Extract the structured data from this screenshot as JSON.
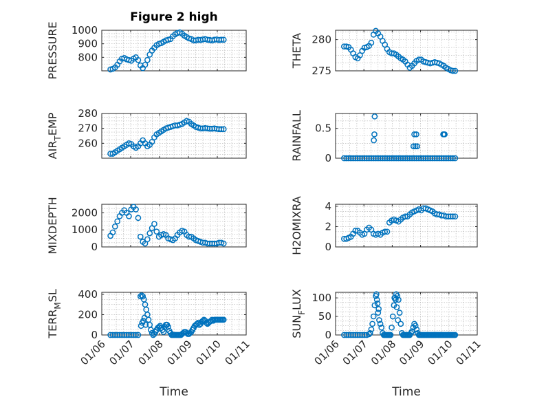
{
  "figure": {
    "title": "Figure 2 high",
    "marker_color": "#0072BD",
    "x_tick_labels": [
      "01/06",
      "01/07",
      "01/08",
      "01/09",
      "01/10",
      "01/11"
    ],
    "xlabel": "Time"
  },
  "chart_data": [
    {
      "type": "scatter",
      "title": "Figure 2 high",
      "ylabel": "PRESSURE",
      "xlim": [
        0,
        5
      ],
      "ylim": [
        700,
        1000
      ],
      "ytick_labels": [
        "800",
        "900",
        "1000"
      ],
      "grid": true,
      "x": [
        0.3,
        0.38,
        0.46,
        0.54,
        0.62,
        0.7,
        0.78,
        0.86,
        0.94,
        1.02,
        1.1,
        1.18,
        1.26,
        1.34,
        1.42,
        1.5,
        1.58,
        1.66,
        1.74,
        1.82,
        1.9,
        1.98,
        2.06,
        2.14,
        2.22,
        2.3,
        2.38,
        2.46,
        2.54,
        2.62,
        2.7,
        2.78,
        2.86,
        2.94,
        3.02,
        3.1,
        3.18,
        3.26,
        3.34,
        3.42,
        3.5,
        3.58,
        3.66,
        3.74,
        3.82,
        3.9,
        3.98,
        4.06,
        4.14,
        4.22
      ],
      "y": [
        710,
        715,
        725,
        745,
        770,
        790,
        795,
        785,
        780,
        775,
        790,
        800,
        780,
        740,
        720,
        745,
        780,
        820,
        850,
        870,
        890,
        900,
        905,
        915,
        925,
        930,
        935,
        955,
        970,
        980,
        985,
        975,
        960,
        950,
        940,
        935,
        925,
        925,
        930,
        928,
        932,
        935,
        930,
        928,
        925,
        930,
        932,
        928,
        930,
        930
      ]
    },
    {
      "type": "scatter",
      "ylabel": "THETA",
      "xlim": [
        0,
        5
      ],
      "ylim": [
        275,
        281.5
      ],
      "ytick_labels": [
        "275",
        "280"
      ],
      "grid": true,
      "x": [
        0.3,
        0.38,
        0.46,
        0.54,
        0.62,
        0.7,
        0.78,
        0.86,
        0.94,
        1.02,
        1.1,
        1.18,
        1.26,
        1.34,
        1.42,
        1.5,
        1.58,
        1.66,
        1.74,
        1.82,
        1.9,
        1.98,
        2.06,
        2.14,
        2.22,
        2.3,
        2.38,
        2.46,
        2.54,
        2.62,
        2.7,
        2.78,
        2.86,
        2.94,
        3.02,
        3.1,
        3.18,
        3.26,
        3.34,
        3.42,
        3.5,
        3.58,
        3.66,
        3.74,
        3.82,
        3.9,
        3.98,
        4.06,
        4.14,
        4.22
      ],
      "y": [
        278.9,
        278.9,
        278.8,
        278.4,
        277.8,
        277.2,
        277.0,
        277.5,
        278.2,
        278.7,
        278.8,
        279.0,
        279.5,
        280.8,
        281.4,
        281.0,
        280.5,
        279.8,
        279.2,
        278.5,
        278.0,
        277.8,
        277.8,
        277.6,
        277.3,
        277.0,
        276.8,
        276.5,
        276.0,
        275.5,
        275.8,
        276.2,
        276.6,
        276.8,
        276.8,
        276.5,
        276.4,
        276.3,
        276.2,
        276.3,
        276.4,
        276.3,
        276.2,
        276.0,
        275.8,
        275.5,
        275.3,
        275.1,
        275.0,
        275.0
      ]
    },
    {
      "type": "scatter",
      "ylabel": "AIR",
      "ylabel_sub": "T",
      "ylabel_rest": "EMP",
      "xlim": [
        0,
        5
      ],
      "ylim": [
        250,
        280
      ],
      "ytick_labels": [
        "260",
        "270",
        "280"
      ],
      "grid": true,
      "x": [
        0.3,
        0.38,
        0.46,
        0.54,
        0.62,
        0.7,
        0.78,
        0.86,
        0.94,
        1.02,
        1.1,
        1.18,
        1.26,
        1.34,
        1.42,
        1.5,
        1.58,
        1.66,
        1.74,
        1.82,
        1.9,
        1.98,
        2.06,
        2.14,
        2.22,
        2.3,
        2.38,
        2.46,
        2.54,
        2.62,
        2.7,
        2.78,
        2.86,
        2.94,
        3.02,
        3.1,
        3.18,
        3.26,
        3.34,
        3.42,
        3.5,
        3.58,
        3.66,
        3.74,
        3.82,
        3.9,
        3.98,
        4.06,
        4.14,
        4.22
      ],
      "y": [
        253,
        253,
        254,
        255,
        256,
        257,
        258,
        259,
        260,
        259.5,
        258,
        257,
        258,
        260,
        262,
        260,
        258,
        259,
        261,
        264,
        266,
        267,
        268,
        269,
        270,
        270.5,
        271,
        271.5,
        272,
        272,
        272.5,
        273,
        274,
        275,
        274.5,
        273,
        272,
        271,
        270.5,
        270,
        270,
        270.2,
        270,
        269.8,
        269.8,
        270,
        269.7,
        269.5,
        269.5,
        269.5
      ]
    },
    {
      "type": "scatter",
      "ylabel": "RAINFALL",
      "xlim": [
        0,
        5
      ],
      "ylim": [
        0,
        0.75
      ],
      "ytick_labels": [
        "0",
        "0.5"
      ],
      "grid": true,
      "x": [
        0.3,
        0.38,
        0.46,
        0.54,
        0.62,
        0.7,
        0.78,
        0.86,
        0.94,
        1.02,
        1.1,
        1.18,
        1.26,
        1.34,
        1.42,
        1.5,
        1.58,
        1.66,
        1.74,
        1.82,
        1.9,
        1.98,
        2.06,
        2.14,
        2.22,
        2.3,
        2.38,
        2.46,
        2.54,
        2.62,
        2.7,
        2.78,
        2.86,
        2.94,
        3.02,
        3.1,
        3.18,
        3.26,
        3.34,
        3.42,
        3.5,
        3.58,
        3.66,
        3.74,
        3.82,
        3.9,
        3.98,
        4.06,
        4.14,
        4.22,
        1.35,
        1.37,
        1.38,
        2.75,
        2.78,
        2.82,
        2.85,
        2.88,
        3.8,
        3.82,
        3.85
      ],
      "y": [
        0,
        0,
        0,
        0,
        0,
        0,
        0,
        0,
        0,
        0,
        0,
        0,
        0,
        0,
        0,
        0,
        0,
        0,
        0,
        0,
        0,
        0,
        0,
        0,
        0,
        0,
        0,
        0,
        0,
        0,
        0,
        0,
        0,
        0,
        0,
        0,
        0,
        0,
        0,
        0,
        0,
        0,
        0,
        0,
        0,
        0,
        0,
        0,
        0,
        0,
        0.3,
        0.4,
        0.7,
        0.2,
        0.4,
        0.2,
        0.4,
        0.2,
        0.4,
        0.4,
        0.4
      ]
    },
    {
      "type": "scatter",
      "ylabel": "MIXDEPTH",
      "xlim": [
        0,
        5
      ],
      "ylim": [
        0,
        2500
      ],
      "ytick_labels": [
        "0",
        "1000",
        "2000"
      ],
      "grid": true,
      "x": [
        0.3,
        0.38,
        0.46,
        0.54,
        0.62,
        0.7,
        0.78,
        0.86,
        0.94,
        1.02,
        1.1,
        1.18,
        1.26,
        1.34,
        1.42,
        1.5,
        1.58,
        1.66,
        1.74,
        1.82,
        1.9,
        1.98,
        2.06,
        2.14,
        2.22,
        2.3,
        2.38,
        2.46,
        2.54,
        2.62,
        2.7,
        2.78,
        2.86,
        2.94,
        3.02,
        3.1,
        3.18,
        3.26,
        3.34,
        3.42,
        3.5,
        3.58,
        3.66,
        3.74,
        3.82,
        3.9,
        3.98,
        4.06,
        4.14,
        4.22
      ],
      "y": [
        650,
        850,
        1200,
        1500,
        1800,
        2000,
        2150,
        2000,
        1800,
        2200,
        2350,
        2200,
        1700,
        600,
        300,
        200,
        450,
        800,
        1100,
        1350,
        900,
        600,
        700,
        750,
        700,
        500,
        450,
        400,
        500,
        700,
        850,
        950,
        900,
        700,
        600,
        600,
        500,
        400,
        350,
        300,
        250,
        250,
        200,
        200,
        200,
        200,
        200,
        250,
        250,
        200
      ]
    },
    {
      "type": "scatter",
      "ylabel": "H2OMIXRA",
      "xlim": [
        0,
        5
      ],
      "ylim": [
        0,
        4.2
      ],
      "ytick_labels": [
        "0",
        "2",
        "4"
      ],
      "grid": true,
      "x": [
        0.3,
        0.38,
        0.46,
        0.54,
        0.62,
        0.7,
        0.78,
        0.86,
        0.94,
        1.02,
        1.1,
        1.18,
        1.26,
        1.34,
        1.42,
        1.5,
        1.58,
        1.66,
        1.74,
        1.82,
        1.9,
        1.98,
        2.06,
        2.14,
        2.22,
        2.3,
        2.38,
        2.46,
        2.54,
        2.62,
        2.7,
        2.78,
        2.86,
        2.94,
        3.02,
        3.1,
        3.18,
        3.26,
        3.34,
        3.42,
        3.5,
        3.58,
        3.66,
        3.74,
        3.82,
        3.9,
        3.98,
        4.06,
        4.14,
        4.22
      ],
      "y": [
        0.8,
        0.8,
        0.9,
        1.0,
        1.3,
        1.6,
        1.6,
        1.4,
        1.2,
        1.3,
        1.7,
        1.9,
        1.7,
        1.3,
        1.2,
        1.3,
        1.2,
        1.4,
        1.5,
        1.5,
        2.4,
        2.6,
        2.7,
        2.6,
        2.5,
        2.7,
        2.9,
        3.0,
        3.0,
        3.2,
        3.4,
        3.5,
        3.6,
        3.7,
        3.6,
        3.8,
        3.8,
        3.7,
        3.6,
        3.5,
        3.3,
        3.2,
        3.2,
        3.1,
        3.1,
        3.0,
        3.0,
        3.0,
        3.0,
        3.0
      ]
    },
    {
      "type": "scatter",
      "ylabel": "TERR",
      "ylabel_sub": "M",
      "ylabel_rest": "SL",
      "xlim": [
        0,
        5
      ],
      "ylim": [
        0,
        420
      ],
      "ytick_labels": [
        "0",
        "200",
        "400"
      ],
      "grid": true,
      "x": [
        0.3,
        0.38,
        0.46,
        0.54,
        0.62,
        0.7,
        0.78,
        0.86,
        0.94,
        1.02,
        1.1,
        1.18,
        1.26,
        1.34,
        1.38,
        1.42,
        1.46,
        1.5,
        1.54,
        1.58,
        1.62,
        1.66,
        1.7,
        1.74,
        1.78,
        1.82,
        1.86,
        1.9,
        1.94,
        1.98,
        2.02,
        2.06,
        2.1,
        2.14,
        2.18,
        2.22,
        2.26,
        2.3,
        2.34,
        2.38,
        2.42,
        2.46,
        2.5,
        2.54,
        2.58,
        2.62,
        2.66,
        2.7,
        2.74,
        2.78,
        2.82,
        2.86,
        2.9,
        2.94,
        2.98,
        3.02,
        3.06,
        3.1,
        3.14,
        3.18,
        3.22,
        3.26,
        3.3,
        3.34,
        3.38,
        3.42,
        3.46,
        3.5,
        3.54,
        3.58,
        3.62,
        3.66,
        3.7,
        3.74,
        3.78,
        3.82,
        3.86,
        3.9,
        3.94,
        3.98,
        4.02,
        4.06,
        4.1,
        4.14,
        4.18,
        4.22,
        1.36,
        1.4,
        1.48,
        1.52,
        1.44
      ],
      "y": [
        0,
        0,
        0,
        0,
        0,
        0,
        0,
        0,
        0,
        0,
        0,
        0,
        0,
        380,
        390,
        380,
        350,
        300,
        250,
        200,
        150,
        100,
        50,
        20,
        0,
        10,
        30,
        50,
        70,
        80,
        90,
        70,
        50,
        30,
        80,
        100,
        100,
        80,
        40,
        20,
        0,
        0,
        0,
        0,
        0,
        0,
        0,
        0,
        0,
        10,
        20,
        30,
        30,
        20,
        10,
        10,
        20,
        30,
        50,
        70,
        90,
        100,
        110,
        120,
        100,
        110,
        130,
        140,
        150,
        140,
        120,
        110,
        120,
        130,
        140,
        150,
        140,
        150,
        150,
        150,
        150,
        150,
        150,
        150,
        150,
        150,
        90,
        120,
        170,
        100,
        140
      ]
    },
    {
      "type": "scatter",
      "ylabel": "SUN",
      "ylabel_sub": "F",
      "ylabel_rest": "LUX",
      "xlim": [
        0,
        5
      ],
      "ylim": [
        0,
        115
      ],
      "ytick_labels": [
        "0",
        "50",
        "100"
      ],
      "grid": true,
      "x": [
        0.3,
        0.38,
        0.46,
        0.54,
        0.62,
        0.7,
        0.78,
        0.86,
        0.94,
        1.02,
        1.1,
        1.18,
        1.22,
        1.26,
        1.3,
        1.34,
        1.38,
        1.42,
        1.46,
        1.5,
        1.54,
        1.58,
        1.62,
        1.66,
        1.7,
        1.74,
        1.78,
        1.82,
        1.86,
        1.9,
        1.94,
        1.98,
        2.02,
        2.06,
        2.1,
        2.14,
        2.18,
        2.22,
        2.26,
        2.3,
        2.34,
        2.38,
        2.42,
        2.46,
        2.5,
        2.54,
        2.58,
        2.62,
        2.66,
        2.7,
        2.74,
        2.78,
        2.82,
        2.86,
        2.9,
        2.94,
        2.98,
        3.02,
        3.06,
        3.1,
        3.14,
        3.18,
        3.22,
        3.26,
        3.3,
        3.34,
        3.38,
        3.42,
        3.46,
        3.5,
        3.54,
        3.58,
        3.62,
        3.66,
        3.7,
        3.74,
        3.78,
        3.82,
        3.86,
        3.9,
        3.94,
        3.98,
        4.02,
        4.06,
        4.1,
        4.14,
        4.18,
        4.22,
        1.44,
        1.48,
        1.52,
        2.08,
        2.12,
        2.16,
        2.2
      ],
      "y": [
        0,
        0,
        0,
        0,
        0,
        0,
        0,
        0,
        0,
        0,
        0,
        2,
        5,
        15,
        30,
        50,
        80,
        105,
        95,
        60,
        40,
        30,
        20,
        5,
        0,
        0,
        0,
        0,
        0,
        0,
        0,
        20,
        50,
        80,
        100,
        110,
        105,
        95,
        60,
        30,
        5,
        0,
        0,
        0,
        0,
        0,
        0,
        0,
        5,
        10,
        20,
        30,
        25,
        15,
        5,
        0,
        0,
        0,
        0,
        0,
        0,
        0,
        0,
        0,
        0,
        0,
        0,
        0,
        0,
        0,
        0,
        0,
        0,
        0,
        0,
        0,
        0,
        0,
        0,
        0,
        0,
        0,
        0,
        0,
        0,
        0,
        0,
        0,
        110,
        85,
        70,
        100,
        95,
        75,
        40
      ]
    }
  ]
}
